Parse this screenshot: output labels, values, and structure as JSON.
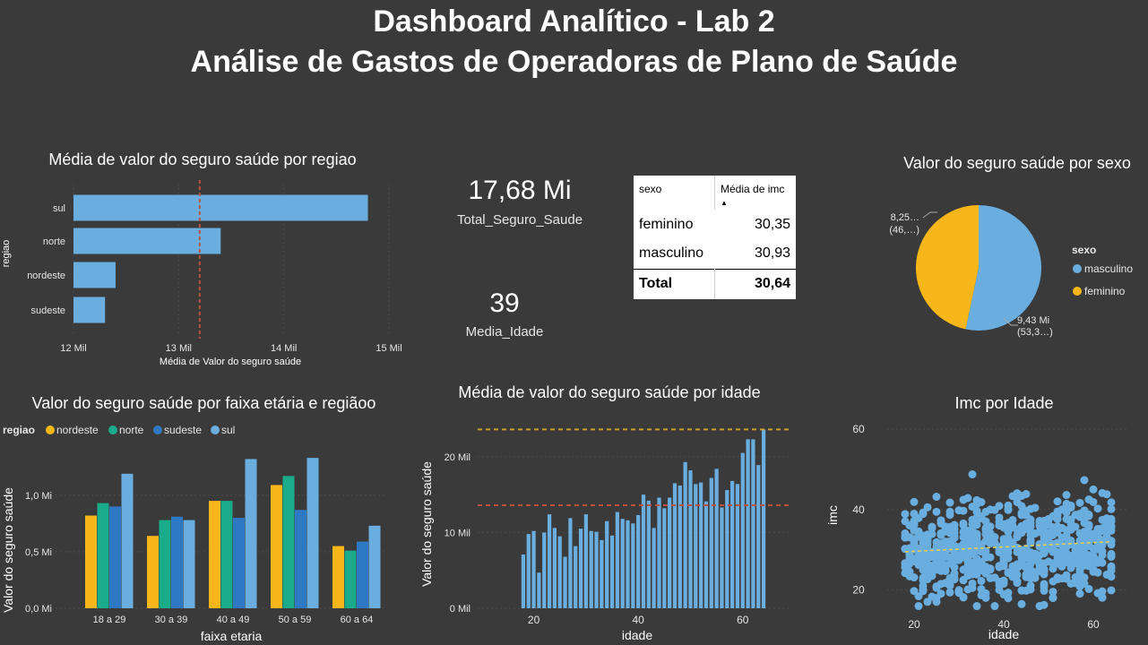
{
  "header": {
    "line1": "Dashboard Analítico - Lab 2",
    "line2": "Análise de Gastos de Operadoras de Plano de Saúde"
  },
  "colors": {
    "background": "#3a3a3a",
    "bar_blue": "#6aaee0",
    "nordeste": "#f7b619",
    "norte": "#1aab8a",
    "sudeste": "#2f78c4",
    "sul": "#6aaee0",
    "ref_red": "#c0503e",
    "ref_gold": "#c8a02a"
  },
  "cards": {
    "total": {
      "value": "17,68 Mi",
      "label": "Total_Seguro_Saude"
    },
    "idade": {
      "value": "39",
      "label": "Media_Idade"
    }
  },
  "table": {
    "headers": [
      "sexo",
      "Média de imc"
    ],
    "rows": [
      {
        "sexo": "feminino",
        "imc": "30,35"
      },
      {
        "sexo": "masculino",
        "imc": "30,93"
      }
    ],
    "total": {
      "label": "Total",
      "value": "30,64"
    }
  },
  "chart_data": [
    {
      "id": "regiao_bar",
      "type": "bar",
      "orientation": "horizontal",
      "title": "Média de valor do seguro saúde por regiao",
      "xlabel": "Média de Valor do seguro saúde",
      "ylabel": "regiao",
      "categories": [
        "sul",
        "norte",
        "nordeste",
        "sudeste"
      ],
      "values": [
        14.8,
        13.4,
        12.4,
        12.3
      ],
      "xlim": [
        12,
        15
      ],
      "xticks": [
        "12 Mil",
        "13 Mil",
        "14 Mil",
        "15 Mil"
      ],
      "reference_line": 13.2
    },
    {
      "id": "sexo_pie",
      "type": "pie",
      "title": "Valor do seguro saúde por sexo",
      "legend_title": "sexo",
      "legend": [
        "masculino",
        "feminino"
      ],
      "slices": [
        {
          "name": "masculino",
          "value": 53.3,
          "label1": "9,43 Mi",
          "label2": "(53,3…)"
        },
        {
          "name": "feminino",
          "value": 46.7,
          "label1": "8,25…",
          "label2": "(46,…)"
        }
      ]
    },
    {
      "id": "faixa_bar",
      "type": "bar",
      "title": "Valor do seguro saúde por faixa etária e regiãoo",
      "legend_title": "regiao",
      "xlabel": "faixa etaria",
      "ylabel": "Valor do seguro saúde",
      "categories": [
        "18 a 29",
        "30 a 39",
        "40 a 49",
        "50 a 59",
        "60 a 64"
      ],
      "series": [
        {
          "name": "nordeste",
          "values": [
            0.82,
            0.64,
            0.95,
            1.09,
            0.55
          ]
        },
        {
          "name": "norte",
          "values": [
            0.93,
            0.78,
            0.95,
            1.17,
            0.51
          ]
        },
        {
          "name": "sudeste",
          "values": [
            0.9,
            0.81,
            0.8,
            0.87,
            0.59
          ]
        },
        {
          "name": "sul",
          "values": [
            1.19,
            0.78,
            1.32,
            1.33,
            0.73
          ]
        }
      ],
      "ylim": [
        0,
        1.45
      ],
      "yticks": [
        "0,0 Mi",
        "0,5 Mi",
        "1,0 Mi"
      ]
    },
    {
      "id": "idade_bar",
      "type": "bar",
      "title": "Média de valor do seguro saúde por idade",
      "xlabel": "idade",
      "ylabel": "Valor do seguro saúde",
      "x": [
        18,
        19,
        20,
        21,
        22,
        23,
        24,
        25,
        26,
        27,
        28,
        29,
        30,
        31,
        32,
        33,
        34,
        35,
        36,
        37,
        38,
        39,
        40,
        41,
        42,
        43,
        44,
        45,
        46,
        47,
        48,
        49,
        50,
        51,
        52,
        53,
        54,
        55,
        56,
        57,
        58,
        59,
        60,
        61,
        62,
        63,
        64
      ],
      "values": [
        7.1,
        9.8,
        10.2,
        4.7,
        10.0,
        12.4,
        10.6,
        9.5,
        6.8,
        11.9,
        8.2,
        10.5,
        12.4,
        10.2,
        10.1,
        9.0,
        11.5,
        9.6,
        12.7,
        11.8,
        11.6,
        11.2,
        12.3,
        15.0,
        14.2,
        10.6,
        14.6,
        13.2,
        14.6,
        16.5,
        16.2,
        19.3,
        18.2,
        16.4,
        16.6,
        14.1,
        17.2,
        18.4,
        13.3,
        15.6,
        16.8,
        16.4,
        20.5,
        22.3,
        22.3,
        18.9,
        23.6
      ],
      "ylim": [
        0,
        24
      ],
      "yticks": [
        "0 Mil",
        "10 Mil",
        "20 Mil"
      ],
      "xticks": [
        "20",
        "40",
        "60"
      ],
      "reference_lines": {
        "average": 13.6,
        "max": 23.6
      }
    },
    {
      "id": "imc_scatter",
      "type": "scatter",
      "title": "Imc por Idade",
      "xlabel": "idade",
      "ylabel": "imc",
      "xlim": [
        16,
        66
      ],
      "ylim": [
        13,
        62
      ],
      "xticks": [
        "20",
        "40",
        "60"
      ],
      "yticks": [
        "20",
        "40",
        "60"
      ],
      "trend": {
        "start": [
          18,
          29.5
        ],
        "end": [
          64,
          32.0
        ]
      }
    }
  ]
}
